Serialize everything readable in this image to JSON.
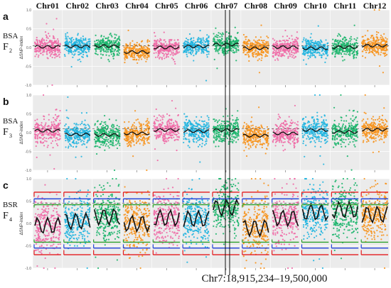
{
  "chart_data": {
    "type": "scatter",
    "chromosomes": [
      "Chr01",
      "Chr02",
      "Chr03",
      "Chr04",
      "Chr05",
      "Chr06",
      "Chr07",
      "Chr08",
      "Chr09",
      "Chr10",
      "Chr11",
      "Chr12"
    ],
    "colors": [
      "#f06aa6",
      "#21b5e0",
      "#1bb56b",
      "#f7941d"
    ],
    "colors_by_chromosome": [
      "pink",
      "cyan",
      "green",
      "orange",
      "pink",
      "cyan",
      "green",
      "orange",
      "pink",
      "cyan",
      "green",
      "orange"
    ],
    "panels": [
      {
        "letter": "a",
        "method": "BSA",
        "generation": "F",
        "subscript": "2",
        "ylabel": "ΔSNP-index",
        "yticks": [
          "1.0",
          "0.5",
          "0.0",
          "-0.5",
          "-1.0"
        ],
        "ylim": [
          -1,
          1
        ],
        "trend": [
          0.02,
          0.03,
          0.04,
          -0.12,
          0.0,
          0.03,
          0.08,
          -0.02,
          0.01,
          -0.02,
          0.01,
          0.05
        ],
        "threshold_line": 0.05,
        "noise": 0.22
      },
      {
        "letter": "b",
        "method": "BSA",
        "generation": "F",
        "subscript": "3",
        "ylabel": "ΔSNP-index",
        "yticks": [
          "1.0",
          "0.5",
          "0.0",
          "-0.5",
          "-1.0"
        ],
        "ylim": [
          -1,
          1
        ],
        "trend": [
          0.05,
          -0.05,
          -0.06,
          -0.02,
          0.07,
          0.04,
          0.07,
          -0.08,
          -0.02,
          0.07,
          0.02,
          0.08
        ],
        "threshold_line": 0.1,
        "noise": 0.28
      },
      {
        "letter": "c",
        "method": "BSR",
        "generation": "F",
        "subscript": "4",
        "ylabel": "ΔSNP-index",
        "yticks": [
          "1.0",
          "0.5",
          "0.0",
          "-0.5",
          "-1.0"
        ],
        "ylim": [
          -1,
          1
        ],
        "trend": [
          -0.05,
          0.05,
          0.15,
          0.0,
          0.12,
          0.1,
          0.35,
          -0.1,
          0.12,
          0.25,
          0.3,
          0.2
        ],
        "threshold_line": 0.45,
        "noise": 0.5
      }
    ],
    "highlight_region": "Chr7:18,915,234–19,500,000",
    "highlight_chromosome": "Chr07",
    "grid": true,
    "legend": "none"
  }
}
